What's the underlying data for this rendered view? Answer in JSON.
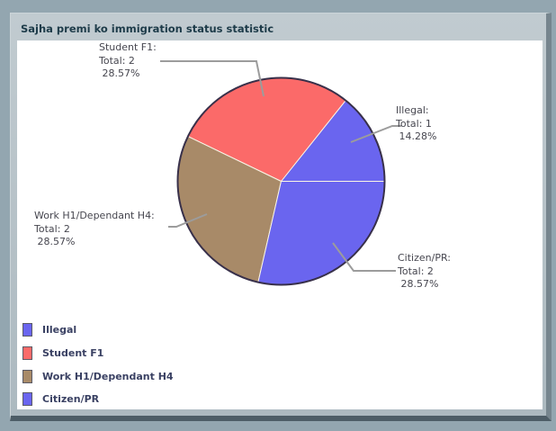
{
  "window": {
    "title": "Sajha premi ko immigration status statistic"
  },
  "chart_data": {
    "type": "pie",
    "title": "Sajha premi ko immigration status statistic",
    "start_angle_deg": 0,
    "direction": "counterclockwise",
    "legend_position": "bottom-left",
    "series": [
      {
        "label": "Illegal",
        "total": 1,
        "percent": 14.28,
        "color": "#6a65ef",
        "callout": [
          "Illegal:",
          "Total: 1",
          " 14.28%"
        ]
      },
      {
        "label": "Student F1",
        "total": 2,
        "percent": 28.57,
        "color": "#fb6a69",
        "callout": [
          "Student F1:",
          "Total: 2",
          " 28.57%"
        ]
      },
      {
        "label": "Work H1/Dependant H4",
        "total": 2,
        "percent": 28.57,
        "color": "#a88a68",
        "callout": [
          "Work H1/Dependant H4:",
          "Total: 2",
          " 28.57%"
        ]
      },
      {
        "label": "Citizen/PR",
        "total": 2,
        "percent": 28.57,
        "color": "#6a65ef",
        "callout": [
          "Citizen/PR:",
          "Total: 2",
          " 28.57%"
        ]
      }
    ],
    "colors": {
      "page_background": "#93a6b0",
      "panel_background": "#b2bdc4",
      "chart_background": "#ffffff",
      "pie_outline": "#38304a",
      "slice_separator": "#faf5e6",
      "callout_line": "#9c9c9c",
      "title_text": "#1d3b49",
      "label_text": "#46464f",
      "legend_text": "#3a4163"
    }
  }
}
